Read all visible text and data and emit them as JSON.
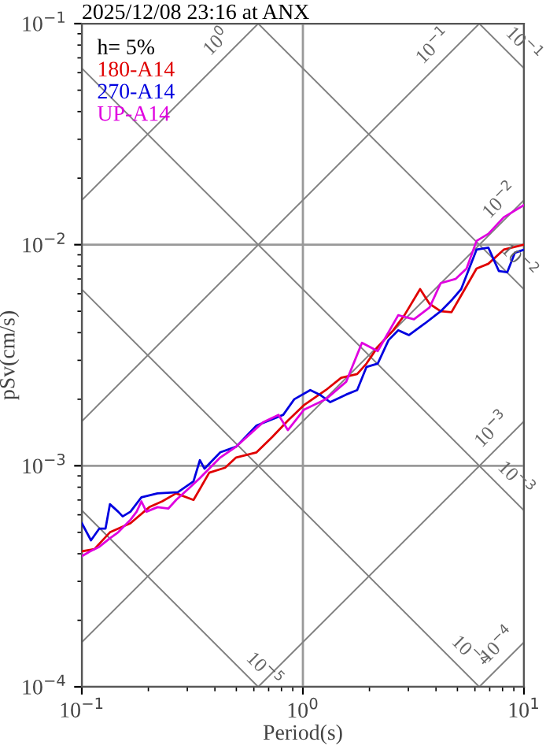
{
  "chart_data": {
    "type": "line",
    "title": "2025/12/08 23:16 at ANX",
    "xlabel": "Period(s)",
    "ylabel": "pSv(cm/s)",
    "legend_title": "h= 5%",
    "legend": "top left",
    "log": "xy",
    "grid": true,
    "xlim": [
      0.1,
      10
    ],
    "ylim": [
      0.0001,
      0.1
    ],
    "xticks": [
      {
        "value": 0.1,
        "label": "10$^{−1}$"
      },
      {
        "value": 1,
        "label": "10$^{0}$"
      },
      {
        "value": 10,
        "label": "10$^{1}$"
      }
    ],
    "yticks": [
      {
        "value": 0.0001,
        "label": "10$^{−4}$"
      },
      {
        "value": 0.001,
        "label": "10$^{−3}$"
      },
      {
        "value": 0.01,
        "label": "10$^{−2}$"
      },
      {
        "value": 0.1,
        "label": "10$^{−1}$"
      }
    ],
    "series": [
      {
        "color": "#808080",
        "x": [
          0.1,
          0.628
        ],
        "values": [
          0.0159,
          0.1
        ]
      },
      {
        "color": "#808080",
        "x": [
          0.1,
          6.28
        ],
        "values": [
          0.00159,
          0.1
        ]
      },
      {
        "color": "#808080",
        "x": [
          0.1,
          10
        ],
        "values": [
          0.000159,
          0.0159
        ]
      },
      {
        "color": "#808080",
        "x": [
          0.628,
          10
        ],
        "values": [
          0.0001,
          0.00159
        ]
      },
      {
        "color": "#808080",
        "x": [
          6.28,
          10
        ],
        "values": [
          0.0001,
          0.000159
        ]
      },
      {
        "color": "#808080",
        "x": [
          6.28,
          10
        ],
        "values": [
          0.1,
          0.0628
        ]
      },
      {
        "color": "#808080",
        "x": [
          0.628,
          10
        ],
        "values": [
          0.1,
          0.00628
        ]
      },
      {
        "color": "#808080",
        "x": [
          0.1,
          10
        ],
        "values": [
          0.0628,
          0.000628
        ]
      },
      {
        "color": "#808080",
        "x": [
          0.1,
          6.28
        ],
        "values": [
          0.00628,
          0.0001
        ]
      },
      {
        "color": "#808080",
        "x": [
          0.1,
          0.628
        ],
        "values": [
          0.000628,
          0.0001
        ]
      },
      {
        "name": "180-A14",
        "color": "#e00000",
        "x": [
          0.1,
          0.114,
          0.134,
          0.166,
          0.202,
          0.231,
          0.267,
          0.32,
          0.377,
          0.445,
          0.499,
          0.617,
          0.727,
          0.855,
          1.01,
          1.27,
          1.49,
          1.76,
          1.94,
          2.18,
          2.56,
          2.88,
          3.39,
          3.74,
          4.2,
          4.7,
          5.2,
          6.1,
          6.9,
          8.1,
          10
        ],
        "values": [
          0.00041,
          0.00042,
          0.0005,
          0.00055,
          0.00065,
          0.00069,
          0.00075,
          0.0007,
          0.00093,
          0.00098,
          0.00109,
          0.00115,
          0.00135,
          0.0016,
          0.00188,
          0.0022,
          0.0025,
          0.0026,
          0.0029,
          0.00345,
          0.0041,
          0.0048,
          0.0063,
          0.0054,
          0.005,
          0.00495,
          0.0059,
          0.0078,
          0.0082,
          0.0095,
          0.01
        ]
      },
      {
        "name": "270-A14",
        "color": "#0000e0",
        "x": [
          0.1,
          0.11,
          0.12,
          0.128,
          0.134,
          0.146,
          0.153,
          0.166,
          0.186,
          0.22,
          0.272,
          0.32,
          0.342,
          0.359,
          0.423,
          0.499,
          0.617,
          0.815,
          0.914,
          1.08,
          1.19,
          1.33,
          1.57,
          1.76,
          1.94,
          2.18,
          2.44,
          2.7,
          3.02,
          3.56,
          4.2,
          4.7,
          5.2,
          6.1,
          6.9,
          7.7,
          8.4,
          9.1,
          10
        ],
        "values": [
          0.00055,
          0.00046,
          0.00052,
          0.00052,
          0.00067,
          0.00062,
          0.00059,
          0.00062,
          0.00072,
          0.00075,
          0.00076,
          0.00085,
          0.00106,
          0.00097,
          0.00115,
          0.00122,
          0.00152,
          0.0017,
          0.002,
          0.0022,
          0.0021,
          0.00194,
          0.0021,
          0.0022,
          0.0028,
          0.0029,
          0.0037,
          0.0041,
          0.0039,
          0.0044,
          0.005,
          0.0056,
          0.0063,
          0.0095,
          0.0097,
          0.0076,
          0.0075,
          0.0092,
          0.0095
        ]
      },
      {
        "name": "UP-A14",
        "color": "#e000e0",
        "x": [
          0.1,
          0.109,
          0.12,
          0.134,
          0.146,
          0.166,
          0.177,
          0.186,
          0.196,
          0.22,
          0.246,
          0.267,
          0.305,
          0.342,
          0.423,
          0.499,
          0.659,
          0.776,
          0.855,
          1.01,
          1.27,
          1.57,
          1.85,
          2.18,
          2.7,
          3.18,
          3.74,
          4.2,
          4.9,
          5.5,
          6.1,
          6.9,
          8.1,
          10
        ],
        "values": [
          0.00039,
          0.00041,
          0.00043,
          0.00047,
          0.0005,
          0.00057,
          0.00062,
          0.00069,
          0.00062,
          0.00065,
          0.00064,
          0.0007,
          0.00079,
          0.00088,
          0.00109,
          0.00122,
          0.00157,
          0.0017,
          0.00145,
          0.00179,
          0.002,
          0.0024,
          0.0036,
          0.0033,
          0.0048,
          0.0046,
          0.0052,
          0.0067,
          0.007,
          0.0078,
          0.0104,
          0.0112,
          0.0133,
          0.0151
        ]
      }
    ],
    "annotations": [
      {
        "text": "10$^{0}$",
        "x": 0.46,
        "y": 0.0732
      },
      {
        "text": "10$^{−1}$",
        "x": 4.4,
        "y": 0.07
      },
      {
        "text": "10$^{−1}$",
        "x": 8.8,
        "y": 0.0714
      },
      {
        "text": "10$^{−2}$",
        "x": 8.8,
        "y": 0.014
      },
      {
        "text": "10$^{−2}$",
        "x": 8.4,
        "y": 0.00748
      },
      {
        "text": "10$^{−3}$",
        "x": 8.1,
        "y": 0.00129
      },
      {
        "text": "10$^{−3}$",
        "x": 8.1,
        "y": 0.000775
      },
      {
        "text": "10$^{−5}$",
        "x": 0.59,
        "y": 0.000106
      },
      {
        "text": "10$^{−4}$",
        "x": 5.0,
        "y": 0.000126
      },
      {
        "text": "10$^{−4}$",
        "x": 8.6,
        "y": 0.000137
      }
    ]
  }
}
